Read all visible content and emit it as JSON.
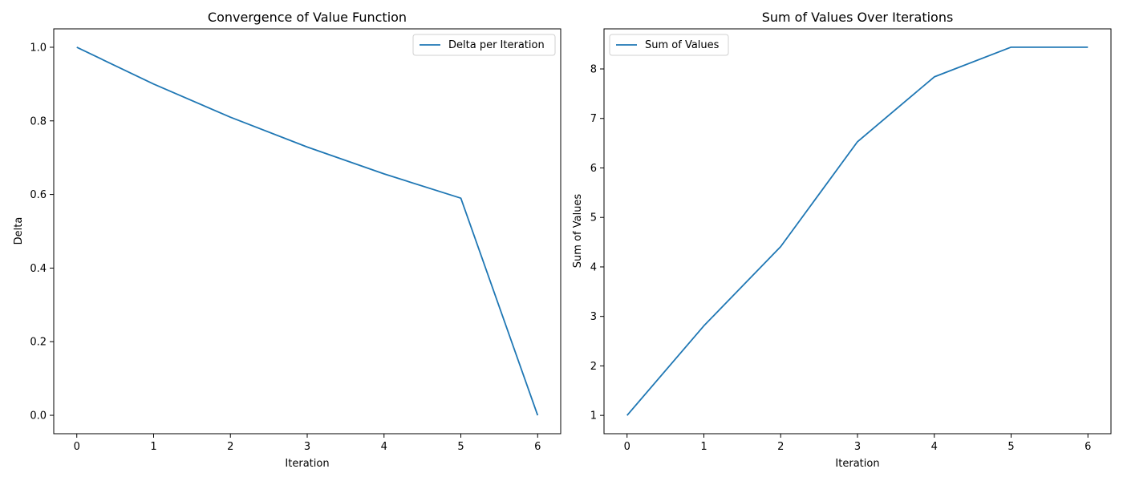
{
  "chart_data": [
    {
      "type": "line",
      "title": "Convergence of Value Function",
      "xlabel": "Iteration",
      "ylabel": "Delta",
      "xlim": [
        -0.3,
        6.3
      ],
      "ylim": [
        -0.05,
        1.05
      ],
      "xticks": [
        0,
        1,
        2,
        3,
        4,
        5,
        6
      ],
      "xtick_labels": [
        "0",
        "1",
        "2",
        "3",
        "4",
        "5",
        "6"
      ],
      "yticks": [
        0.0,
        0.2,
        0.4,
        0.6,
        0.8,
        1.0
      ],
      "ytick_labels": [
        "0.0",
        "0.2",
        "0.4",
        "0.6",
        "0.8",
        "1.0"
      ],
      "legend_position": "top-right",
      "grid": false,
      "series": [
        {
          "name": "Delta per Iteration",
          "color": "#1f77b4",
          "x": [
            0,
            1,
            2,
            3,
            4,
            5,
            6
          ],
          "y": [
            1.0,
            0.9,
            0.81,
            0.729,
            0.656,
            0.59,
            0.0
          ]
        }
      ]
    },
    {
      "type": "line",
      "title": "Sum of Values Over Iterations",
      "xlabel": "Iteration",
      "ylabel": "Sum of Values",
      "xlim": [
        -0.3,
        6.3
      ],
      "ylim": [
        0.63,
        8.81
      ],
      "xticks": [
        0,
        1,
        2,
        3,
        4,
        5,
        6
      ],
      "xtick_labels": [
        "0",
        "1",
        "2",
        "3",
        "4",
        "5",
        "6"
      ],
      "yticks": [
        1,
        2,
        3,
        4,
        5,
        6,
        7,
        8
      ],
      "ytick_labels": [
        "1",
        "2",
        "3",
        "4",
        "5",
        "6",
        "7",
        "8"
      ],
      "legend_position": "top-left",
      "grid": false,
      "series": [
        {
          "name": "Sum of Values",
          "color": "#1f77b4",
          "x": [
            0,
            1,
            2,
            3,
            4,
            5,
            6
          ],
          "y": [
            1.0,
            2.81,
            4.41,
            6.53,
            7.84,
            8.44,
            8.44
          ]
        }
      ]
    }
  ]
}
